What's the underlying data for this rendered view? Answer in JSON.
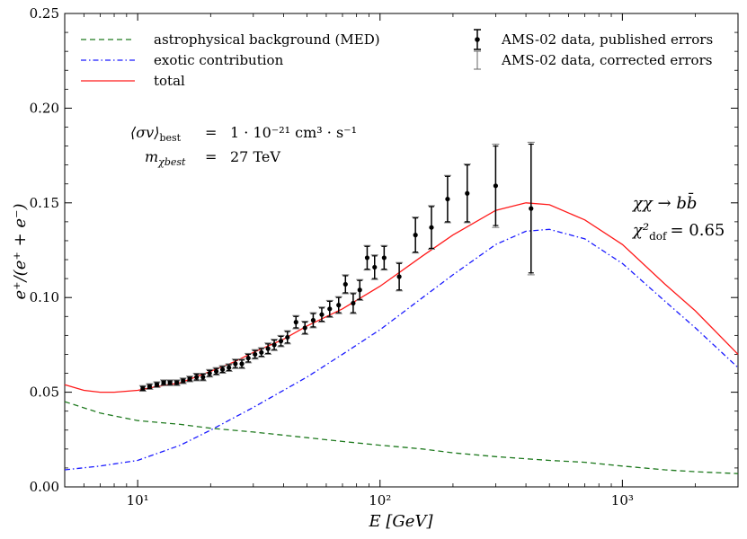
{
  "chart_data": {
    "type": "line",
    "xscale": "log",
    "xlim": [
      5,
      3000
    ],
    "ylim": [
      0.0,
      0.25
    ],
    "xlabel": "E [GeV]",
    "ylabel": "e⁺/(e⁺ + e⁻)",
    "grid": false,
    "xticks": [
      {
        "value": 10,
        "label": "10¹"
      },
      {
        "value": 100,
        "label": "10²"
      },
      {
        "value": 1000,
        "label": "10³"
      }
    ],
    "yticks": [
      {
        "value": 0.0,
        "label": "0.00"
      },
      {
        "value": 0.05,
        "label": "0.05"
      },
      {
        "value": 0.1,
        "label": "0.10"
      },
      {
        "value": 0.15,
        "label": "0.15"
      },
      {
        "value": 0.2,
        "label": "0.20"
      },
      {
        "value": 0.25,
        "label": "0.25"
      }
    ],
    "series": [
      {
        "name": "astrophysical background (MED)",
        "style": "dashed",
        "color": "#1f7a1f",
        "x": [
          5,
          7,
          10,
          15,
          20,
          30,
          50,
          70,
          100,
          150,
          200,
          300,
          500,
          700,
          1000,
          1500,
          2000,
          3000
        ],
        "y": [
          0.045,
          0.039,
          0.035,
          0.033,
          0.031,
          0.029,
          0.026,
          0.024,
          0.022,
          0.02,
          0.018,
          0.016,
          0.014,
          0.013,
          0.011,
          0.009,
          0.008,
          0.007
        ]
      },
      {
        "name": "exotic contribution",
        "style": "dashdot",
        "color": "#1a1aff",
        "x": [
          5,
          7,
          10,
          15,
          20,
          30,
          50,
          70,
          100,
          150,
          200,
          300,
          400,
          500,
          700,
          1000,
          1500,
          2000,
          3000
        ],
        "y": [
          0.009,
          0.011,
          0.014,
          0.022,
          0.03,
          0.042,
          0.058,
          0.07,
          0.083,
          0.1,
          0.112,
          0.128,
          0.135,
          0.136,
          0.131,
          0.118,
          0.098,
          0.084,
          0.063
        ]
      },
      {
        "name": "total",
        "style": "solid",
        "color": "#ff1a1a",
        "x": [
          5,
          6,
          7,
          8,
          10,
          12,
          15,
          20,
          25,
          30,
          40,
          50,
          70,
          100,
          150,
          200,
          300,
          400,
          500,
          700,
          1000,
          1500,
          2000,
          3000
        ],
        "y": [
          0.054,
          0.051,
          0.05,
          0.05,
          0.051,
          0.053,
          0.055,
          0.061,
          0.066,
          0.071,
          0.078,
          0.085,
          0.094,
          0.106,
          0.122,
          0.133,
          0.146,
          0.15,
          0.149,
          0.141,
          0.128,
          0.107,
          0.093,
          0.07
        ]
      }
    ],
    "data_points": {
      "name": "AMS-02 data, published errors",
      "name_corrected": "AMS-02 data, corrected errors",
      "color": "#000000",
      "x": [
        10.5,
        11.2,
        12.0,
        12.8,
        13.6,
        14.5,
        15.4,
        16.4,
        17.5,
        18.6,
        19.8,
        21.1,
        22.4,
        23.8,
        25.3,
        26.9,
        28.6,
        30.5,
        32.4,
        34.5,
        36.6,
        39.0,
        41.5,
        45.0,
        49.0,
        53.0,
        57.5,
        62.0,
        67.5,
        72.0,
        77.5,
        82.5,
        88.5,
        95.0,
        104,
        120,
        140,
        163,
        190,
        229,
        300,
        420
      ],
      "y": [
        0.052,
        0.053,
        0.054,
        0.055,
        0.055,
        0.055,
        0.056,
        0.057,
        0.058,
        0.058,
        0.06,
        0.061,
        0.062,
        0.063,
        0.065,
        0.065,
        0.068,
        0.07,
        0.071,
        0.073,
        0.075,
        0.077,
        0.079,
        0.087,
        0.084,
        0.088,
        0.091,
        0.094,
        0.096,
        0.107,
        0.097,
        0.104,
        0.121,
        0.116,
        0.121,
        0.111,
        0.133,
        0.137,
        0.152,
        0.155,
        0.159,
        0.147
      ],
      "err": [
        0.001,
        0.001,
        0.001,
        0.001,
        0.001,
        0.001,
        0.001,
        0.001,
        0.0015,
        0.0015,
        0.0015,
        0.0015,
        0.0015,
        0.0015,
        0.002,
        0.002,
        0.002,
        0.002,
        0.002,
        0.0025,
        0.0025,
        0.0025,
        0.003,
        0.003,
        0.003,
        0.0035,
        0.0035,
        0.004,
        0.004,
        0.0045,
        0.005,
        0.005,
        0.006,
        0.006,
        0.006,
        0.007,
        0.009,
        0.011,
        0.012,
        0.015,
        0.021,
        0.034
      ],
      "err_corrected": [
        0.0015,
        0.0015,
        0.0015,
        0.0015,
        0.0015,
        0.0015,
        0.0015,
        0.0015,
        0.002,
        0.002,
        0.002,
        0.002,
        0.002,
        0.002,
        0.0025,
        0.0025,
        0.0025,
        0.0025,
        0.0025,
        0.003,
        0.003,
        0.003,
        0.0035,
        0.0035,
        0.0035,
        0.004,
        0.004,
        0.0045,
        0.0045,
        0.005,
        0.0055,
        0.0055,
        0.0065,
        0.0065,
        0.0065,
        0.0075,
        0.0095,
        0.0115,
        0.0125,
        0.0155,
        0.022,
        0.035
      ]
    },
    "annotations": {
      "sigma_lhs": "⟨σv⟩",
      "sigma_lhs_sub": "best",
      "sigma_eq": "=",
      "sigma_rhs": "1 · 10⁻²¹ cm³ · s⁻¹",
      "mass_lhs": "m",
      "mass_lhs_sub": "χbest",
      "mass_eq": "=",
      "mass_rhs": "27 TeV",
      "channel": "χχ → bb̄",
      "chi2_lhs": "χ²",
      "chi2_sub": "dof",
      "chi2_rhs": "= 0.65"
    }
  }
}
